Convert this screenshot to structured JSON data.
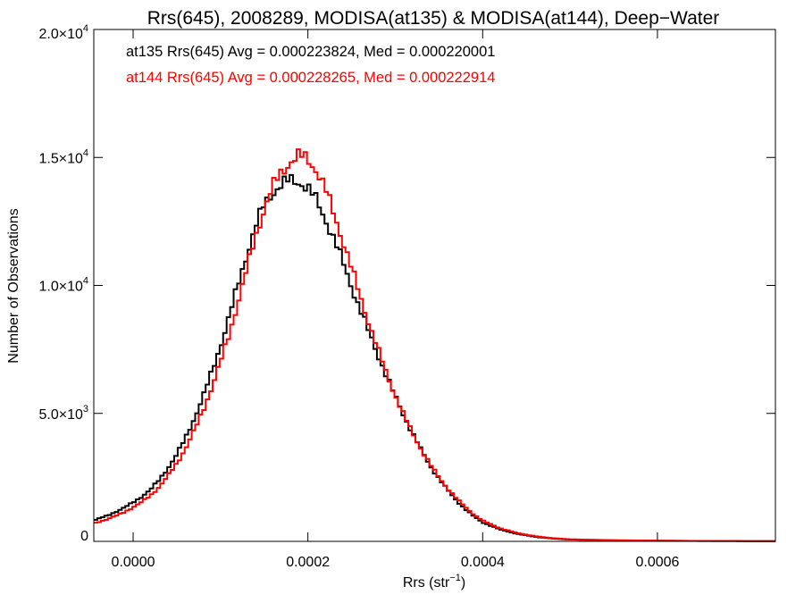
{
  "chart_data": {
    "type": "histogram",
    "title": "Rrs(645), 2008289, MODISA(at135) & MODISA(at144), Deep−Water",
    "xlabel": "Rrs (str",
    "xlabel_sup": "−1",
    "xlabel_end": ")",
    "ylabel": "Number of Observations",
    "xlim": [
      -4.5e-05,
      0.000735
    ],
    "ylim": [
      0,
      20000
    ],
    "grid": false,
    "x_ticks": [
      {
        "value": 0.0,
        "label": "0.0000"
      },
      {
        "value": 0.0002,
        "label": "0.0002"
      },
      {
        "value": 0.0004,
        "label": "0.0004"
      },
      {
        "value": 0.0006,
        "label": "0.0006"
      }
    ],
    "y_ticks": [
      {
        "value": 0,
        "label": "0",
        "exp": ""
      },
      {
        "value": 5000,
        "label": "5.0×10",
        "exp": "3"
      },
      {
        "value": 10000,
        "label": "1.0×10",
        "exp": "4"
      },
      {
        "value": 15000,
        "label": "1.5×10",
        "exp": "4"
      },
      {
        "value": 20000,
        "label": "2.0×10",
        "exp": "4"
      }
    ],
    "annotations": [
      {
        "text": "at135 Rrs(645) Avg = 0.000223824, Med = 0.000220001",
        "color": "#000000"
      },
      {
        "text": "at144 Rrs(645) Avg = 0.000228265, Med = 0.000222914",
        "color": "#ff0000"
      }
    ],
    "bin_width": 4e-06,
    "series": [
      {
        "name": "at135",
        "color": "#000000",
        "points": [
          [
            -4.5e-05,
            820
          ],
          [
            -3e-05,
            1000
          ],
          [
            -2e-05,
            1150
          ],
          [
            -1e-05,
            1320
          ],
          [
            0.0,
            1520
          ],
          [
            1e-05,
            1750
          ],
          [
            2e-05,
            2030
          ],
          [
            3e-05,
            2400
          ],
          [
            4e-05,
            2870
          ],
          [
            5e-05,
            3400
          ],
          [
            6e-05,
            4030
          ],
          [
            7e-05,
            4800
          ],
          [
            8e-05,
            5650
          ],
          [
            9e-05,
            6600
          ],
          [
            0.0001,
            7650
          ],
          [
            0.00011,
            8800
          ],
          [
            0.00012,
            10000
          ],
          [
            0.00013,
            11200
          ],
          [
            0.00014,
            12300
          ],
          [
            0.00015,
            13150
          ],
          [
            0.00016,
            13650
          ],
          [
            0.00017,
            13950
          ],
          [
            0.00018,
            14100
          ],
          [
            0.00019,
            14050
          ],
          [
            0.0002,
            13800
          ],
          [
            0.00021,
            13300
          ],
          [
            0.00022,
            12600
          ],
          [
            0.00023,
            11800
          ],
          [
            0.00024,
            10900
          ],
          [
            0.00025,
            9950
          ],
          [
            0.00026,
            9050
          ],
          [
            0.00027,
            8150
          ],
          [
            0.00028,
            7300
          ],
          [
            0.00029,
            6450
          ],
          [
            0.0003,
            5650
          ],
          [
            0.00031,
            4900
          ],
          [
            0.00032,
            4200
          ],
          [
            0.00033,
            3550
          ],
          [
            0.00034,
            2950
          ],
          [
            0.00035,
            2450
          ],
          [
            0.00036,
            2000
          ],
          [
            0.00037,
            1600
          ],
          [
            0.00038,
            1260
          ],
          [
            0.00039,
            970
          ],
          [
            0.0004,
            740
          ],
          [
            0.00042,
            460
          ],
          [
            0.00044,
            290
          ],
          [
            0.00046,
            180
          ],
          [
            0.00048,
            110
          ],
          [
            0.0005,
            70
          ],
          [
            0.00055,
            40
          ],
          [
            0.0006,
            25
          ],
          [
            0.00065,
            15
          ],
          [
            0.0007,
            10
          ],
          [
            0.000735,
            8
          ]
        ]
      },
      {
        "name": "at144",
        "color": "#ff0000",
        "points": [
          [
            -4.5e-05,
            700
          ],
          [
            -3e-05,
            860
          ],
          [
            -2e-05,
            990
          ],
          [
            -1e-05,
            1150
          ],
          [
            0.0,
            1330
          ],
          [
            1e-05,
            1540
          ],
          [
            2e-05,
            1800
          ],
          [
            3e-05,
            2130
          ],
          [
            4e-05,
            2560
          ],
          [
            5e-05,
            3050
          ],
          [
            6e-05,
            3630
          ],
          [
            7e-05,
            4330
          ],
          [
            8e-05,
            5120
          ],
          [
            9e-05,
            6020
          ],
          [
            0.0001,
            7020
          ],
          [
            0.00011,
            8100
          ],
          [
            0.00012,
            9350
          ],
          [
            0.00013,
            10600
          ],
          [
            0.00014,
            11900
          ],
          [
            0.00015,
            13000
          ],
          [
            0.00016,
            13850
          ],
          [
            0.00017,
            14450
          ],
          [
            0.00018,
            14850
          ],
          [
            0.00019,
            15050
          ],
          [
            0.0002,
            14950
          ],
          [
            0.00021,
            14500
          ],
          [
            0.00022,
            13750
          ],
          [
            0.00023,
            12800
          ],
          [
            0.00024,
            11750
          ],
          [
            0.00025,
            10650
          ],
          [
            0.00026,
            9550
          ],
          [
            0.00027,
            8500
          ],
          [
            0.00028,
            7500
          ],
          [
            0.00029,
            6550
          ],
          [
            0.0003,
            5700
          ],
          [
            0.00031,
            4920
          ],
          [
            0.00032,
            4220
          ],
          [
            0.00033,
            3580
          ],
          [
            0.00034,
            3000
          ],
          [
            0.00035,
            2500
          ],
          [
            0.00036,
            2060
          ],
          [
            0.00037,
            1670
          ],
          [
            0.00038,
            1340
          ],
          [
            0.00039,
            1050
          ],
          [
            0.0004,
            810
          ],
          [
            0.00042,
            510
          ],
          [
            0.00044,
            320
          ],
          [
            0.00046,
            200
          ],
          [
            0.00048,
            125
          ],
          [
            0.0005,
            80
          ],
          [
            0.00055,
            45
          ],
          [
            0.0006,
            28
          ],
          [
            0.00065,
            17
          ],
          [
            0.0007,
            11
          ],
          [
            0.000735,
            9
          ]
        ]
      }
    ]
  }
}
